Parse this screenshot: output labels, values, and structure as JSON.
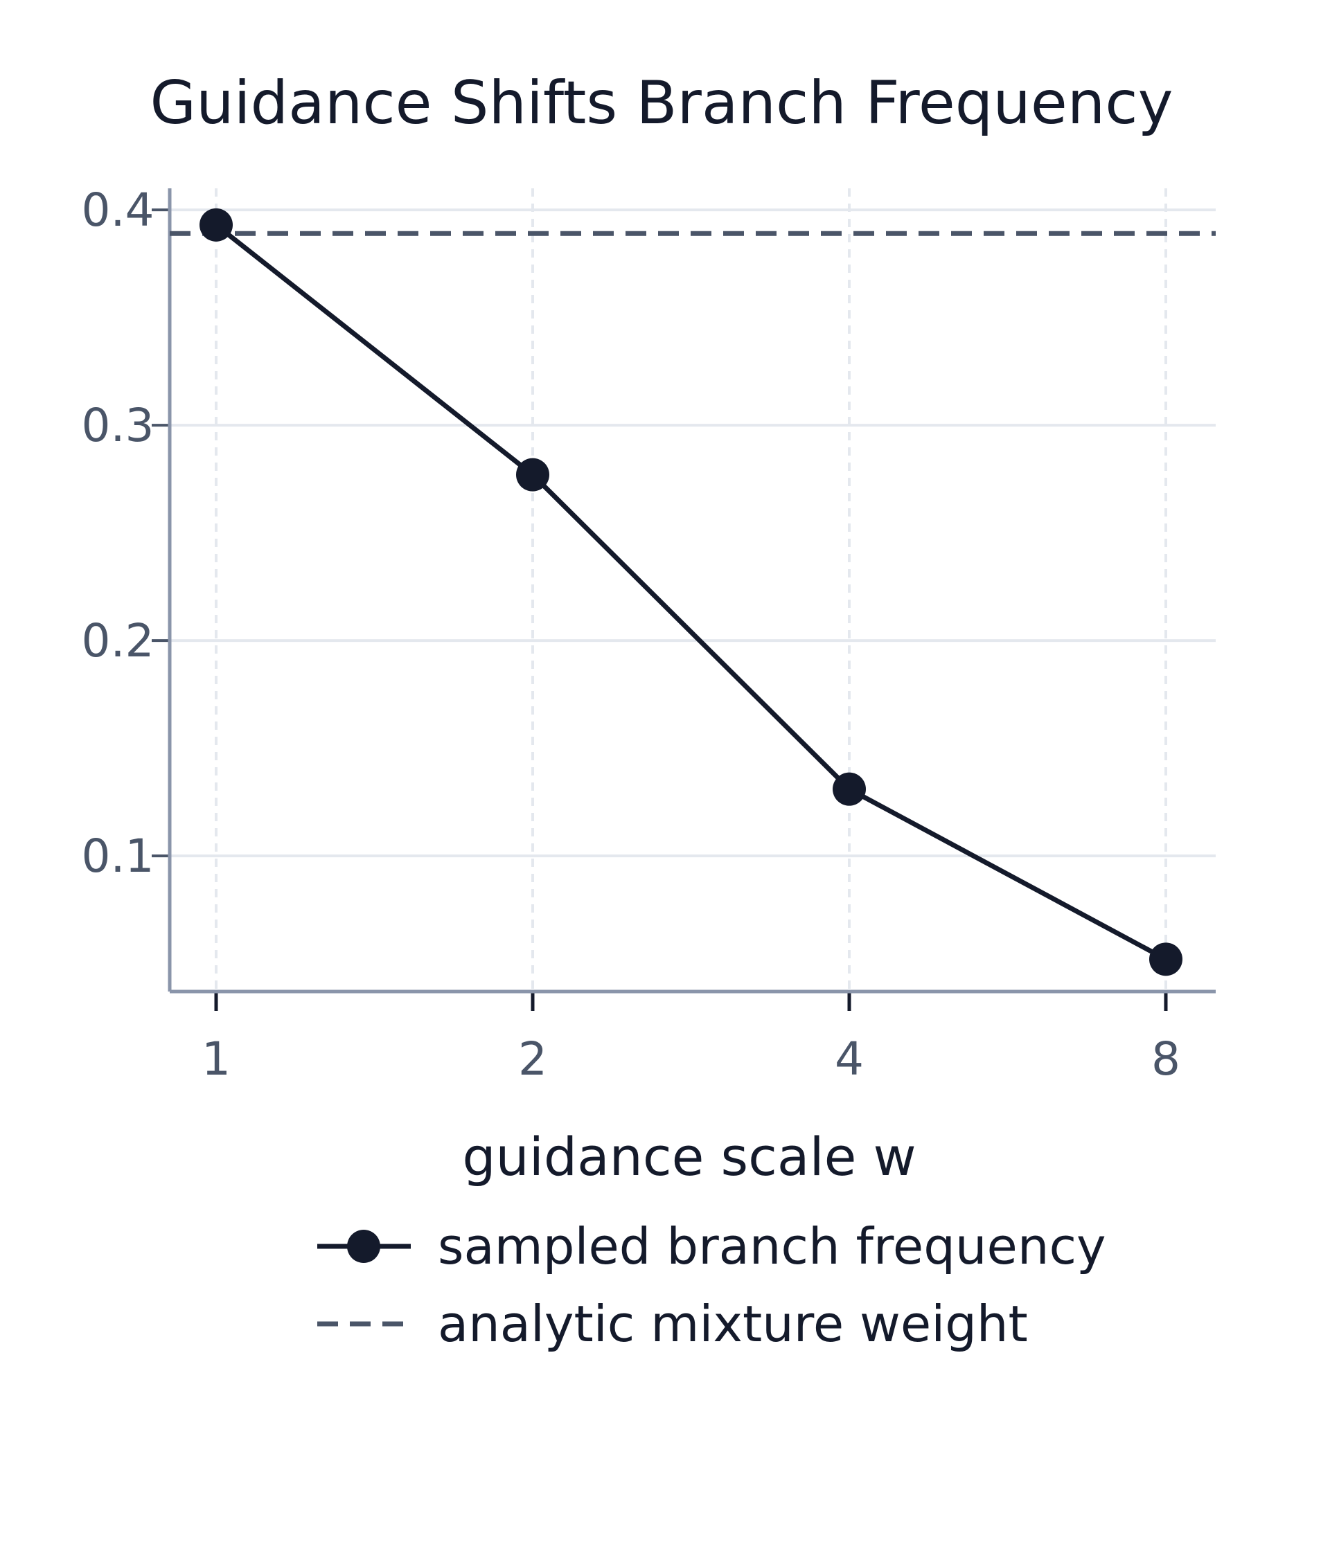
{
  "chart_data": {
    "type": "line",
    "title": "Guidance Shifts Branch Frequency",
    "xlabel": "guidance scale w",
    "ylabel": "",
    "x_scale": "log2",
    "x": [
      1,
      2,
      4,
      8
    ],
    "x_tick_labels": [
      "1",
      "2",
      "4",
      "8"
    ],
    "ylim": [
      0.037,
      0.41
    ],
    "y_ticks": [
      0.1,
      0.2,
      0.3,
      0.4
    ],
    "y_tick_labels": [
      "0.1",
      "0.2",
      "0.3",
      "0.4"
    ],
    "grid": true,
    "legend_position": "bottom",
    "series": [
      {
        "name": "sampled branch frequency",
        "values": [
          0.393,
          0.277,
          0.131,
          0.052
        ],
        "style": "solid-with-markers",
        "color": "#141a2b"
      }
    ],
    "reference_lines": [
      {
        "name": "analytic mixture weight",
        "y": 0.389,
        "style": "dashed",
        "color": "#4a5568"
      }
    ]
  }
}
